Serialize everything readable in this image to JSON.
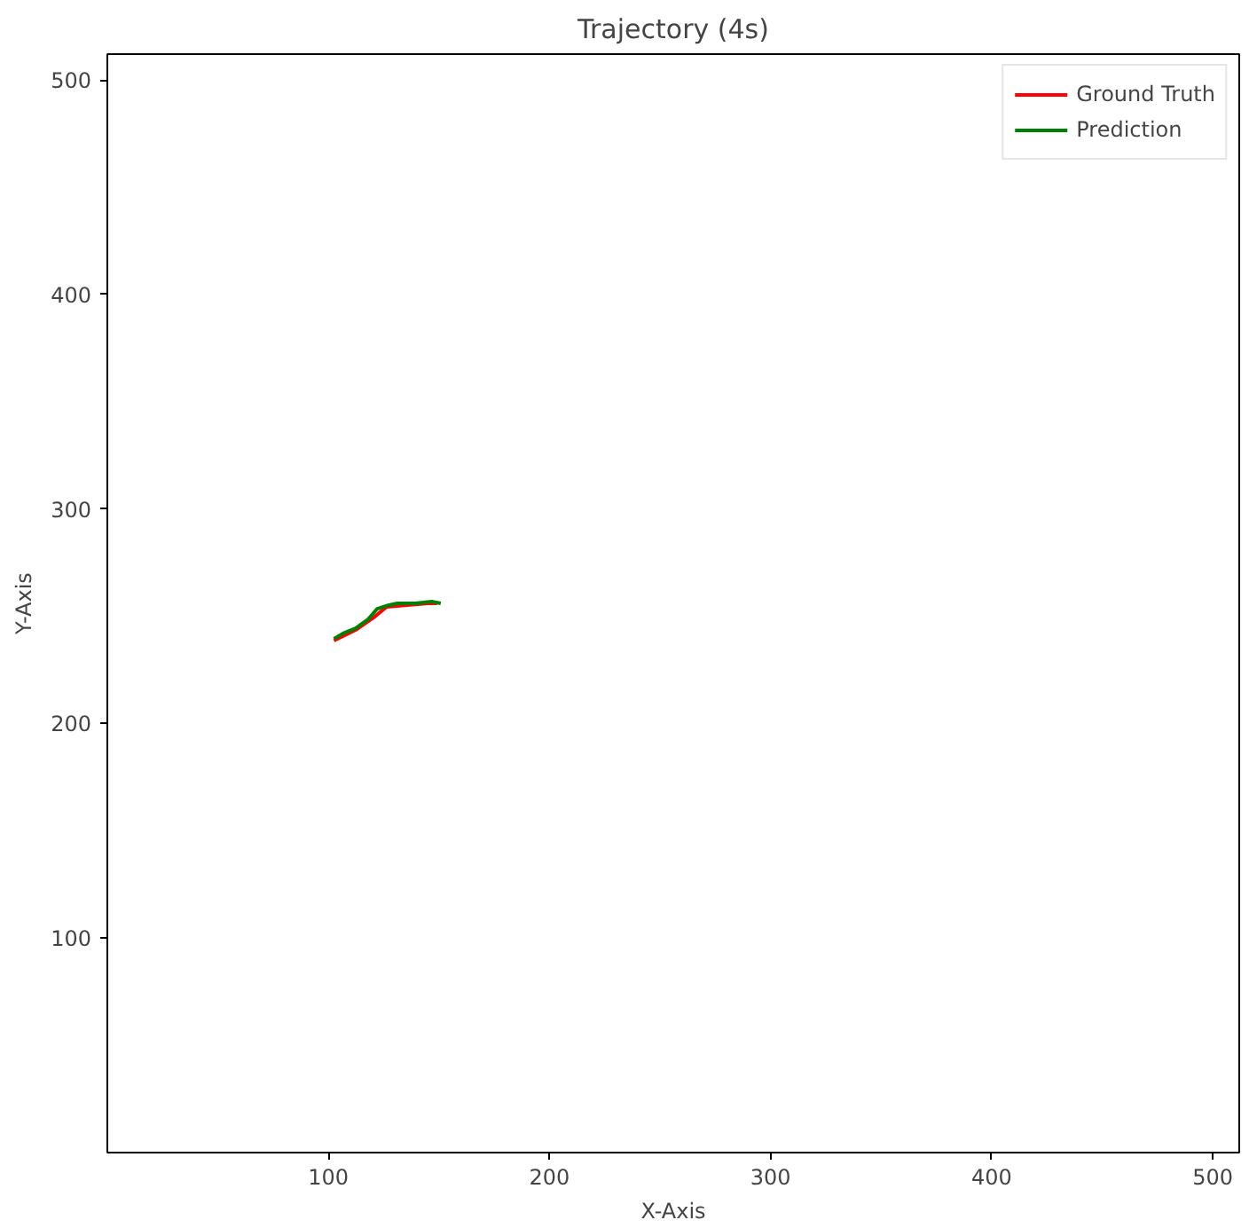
{
  "chart_data": {
    "type": "line",
    "title": "Trajectory (4s)",
    "xlabel": "X-Axis",
    "ylabel": "Y-Axis",
    "xlim": [
      0,
      512
    ],
    "ylim": [
      0,
      512
    ],
    "xticks": [
      100,
      200,
      300,
      400,
      500
    ],
    "yticks": [
      100,
      200,
      300,
      400,
      500
    ],
    "grid": false,
    "legend": "top right",
    "marker": "none",
    "line_style": "solid",
    "series": [
      {
        "name": "Ground Truth",
        "color": "#ff0000",
        "x": [
          102.5,
          112.3,
          120.5,
          126.2,
          134.4,
          145,
          149.2
        ],
        "values": [
          238.7,
          243.6,
          249.4,
          254.3,
          255.1,
          256,
          256
        ]
      },
      {
        "name": "Prediction",
        "color": "#008000",
        "x": [
          102.5,
          106.6,
          112.3,
          118,
          122.1,
          127,
          131.1,
          139.3,
          146.7,
          150.8
        ],
        "values": [
          239.5,
          242,
          244.4,
          248.6,
          253.5,
          255.1,
          256,
          256,
          256.8,
          256
        ]
      }
    ]
  }
}
